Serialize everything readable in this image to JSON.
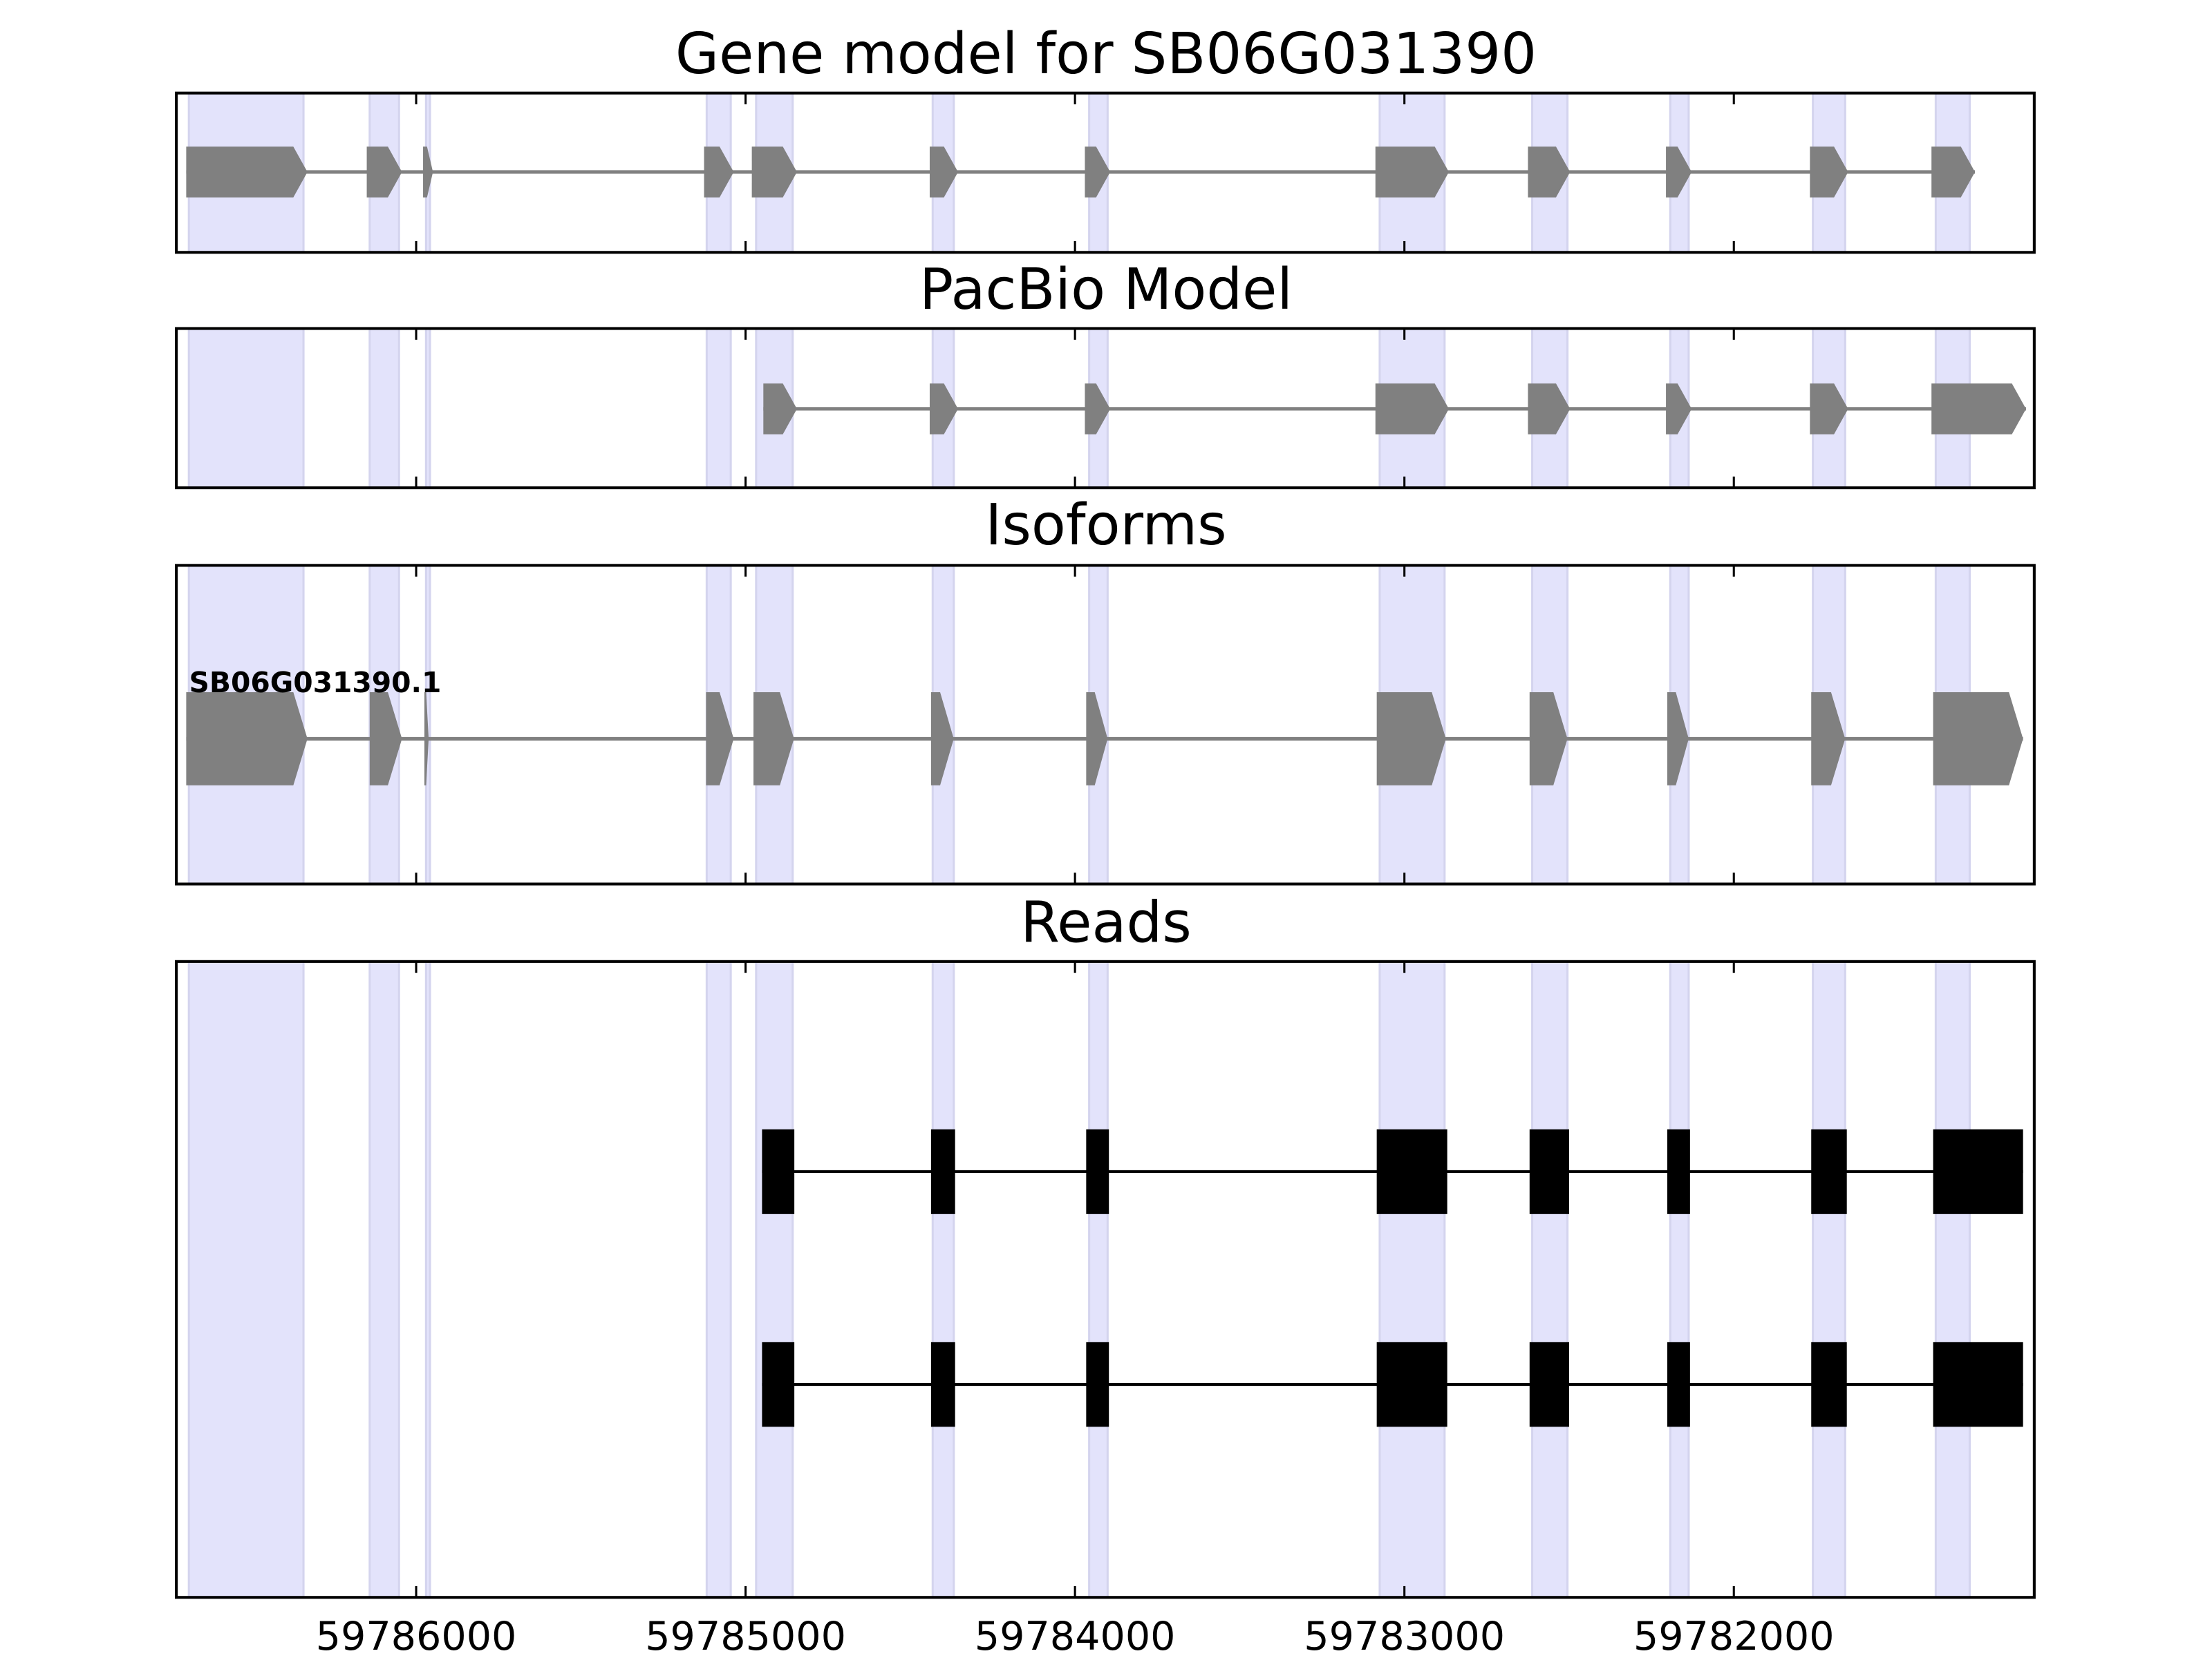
{
  "chart_data": {
    "type": "gene-track",
    "xlim": [
      59786728,
      59781088
    ],
    "xticks": [
      59786000,
      59785000,
      59784000,
      59783000,
      59782000
    ],
    "xtick_labels": [
      "59786000",
      "59785000",
      "59784000",
      "59783000",
      "59782000"
    ],
    "colors": {
      "exon": "#808080",
      "intron": "#808080",
      "highlight": "#e3e3fb",
      "highlight_edge": "#d4d4ee",
      "read": "#000000"
    },
    "highlight_regions": [
      [
        59786690,
        59786342
      ],
      [
        59786141,
        59786052
      ],
      [
        59785970,
        59785958
      ],
      [
        59785118,
        59785045
      ],
      [
        59784968,
        59784857
      ],
      [
        59784432,
        59784368
      ],
      [
        59783957,
        59783901
      ],
      [
        59783075,
        59782878
      ],
      [
        59782612,
        59782505
      ],
      [
        59782193,
        59782137
      ],
      [
        59781760,
        59781662
      ],
      [
        59781387,
        59781284
      ]
    ],
    "panels": [
      {
        "title": "Gene model for SB06G031390",
        "type": "gene",
        "models": [
          {
            "label": "",
            "exons": [
              [
                59786698,
                59786330
              ],
              [
                59786150,
                59786043
              ],
              [
                59785979,
                59785949
              ],
              [
                59785126,
                59785036
              ],
              [
                59784981,
                59784844
              ],
              [
                59784441,
                59784355
              ],
              [
                59783970,
                59783893
              ],
              [
                59783088,
                59782865
              ],
              [
                59782625,
                59782497
              ],
              [
                59782206,
                59782128
              ],
              [
                59781769,
                59781653
              ],
              [
                59781400,
                59781268
              ]
            ]
          }
        ]
      },
      {
        "title": "PacBio Model",
        "type": "gene",
        "models": [
          {
            "label": "",
            "exons": [
              [
                59784946,
                59784844
              ],
              [
                59784441,
                59784355
              ],
              [
                59783970,
                59783893
              ],
              [
                59783088,
                59782865
              ],
              [
                59782625,
                59782497
              ],
              [
                59782206,
                59782128
              ],
              [
                59781769,
                59781653
              ],
              [
                59781400,
                59781113
              ]
            ]
          }
        ]
      },
      {
        "title": "Isoforms",
        "type": "gene",
        "models": [
          {
            "label": "SB06G031390.1",
            "exons": [
              [
                59786698,
                59786330
              ],
              [
                59786141,
                59786043
              ],
              [
                59785975,
                59785962
              ],
              [
                59785120,
                59785036
              ],
              [
                59784976,
                59784853
              ],
              [
                59784437,
                59784368
              ],
              [
                59783966,
                59783901
              ],
              [
                59783084,
                59782874
              ],
              [
                59782620,
                59782505
              ],
              [
                59782202,
                59782137
              ],
              [
                59781765,
                59781662
              ],
              [
                59781395,
                59781122
              ]
            ]
          }
        ]
      },
      {
        "title": "Reads",
        "type": "reads",
        "models": [
          {
            "label": "",
            "exons": [
              [
                59784950,
                59784852
              ],
              [
                59784437,
                59784364
              ],
              [
                59783966,
                59783897
              ],
              [
                59783084,
                59782870
              ],
              [
                59782620,
                59782500
              ],
              [
                59782202,
                59782133
              ],
              [
                59781765,
                59781657
              ],
              [
                59781395,
                59781122
              ]
            ]
          },
          {
            "label": "",
            "exons": [
              [
                59784950,
                59784852
              ],
              [
                59784437,
                59784364
              ],
              [
                59783966,
                59783897
              ],
              [
                59783084,
                59782870
              ],
              [
                59782620,
                59782500
              ],
              [
                59782202,
                59782133
              ],
              [
                59781765,
                59781657
              ],
              [
                59781395,
                59781122
              ]
            ]
          }
        ]
      }
    ]
  }
}
